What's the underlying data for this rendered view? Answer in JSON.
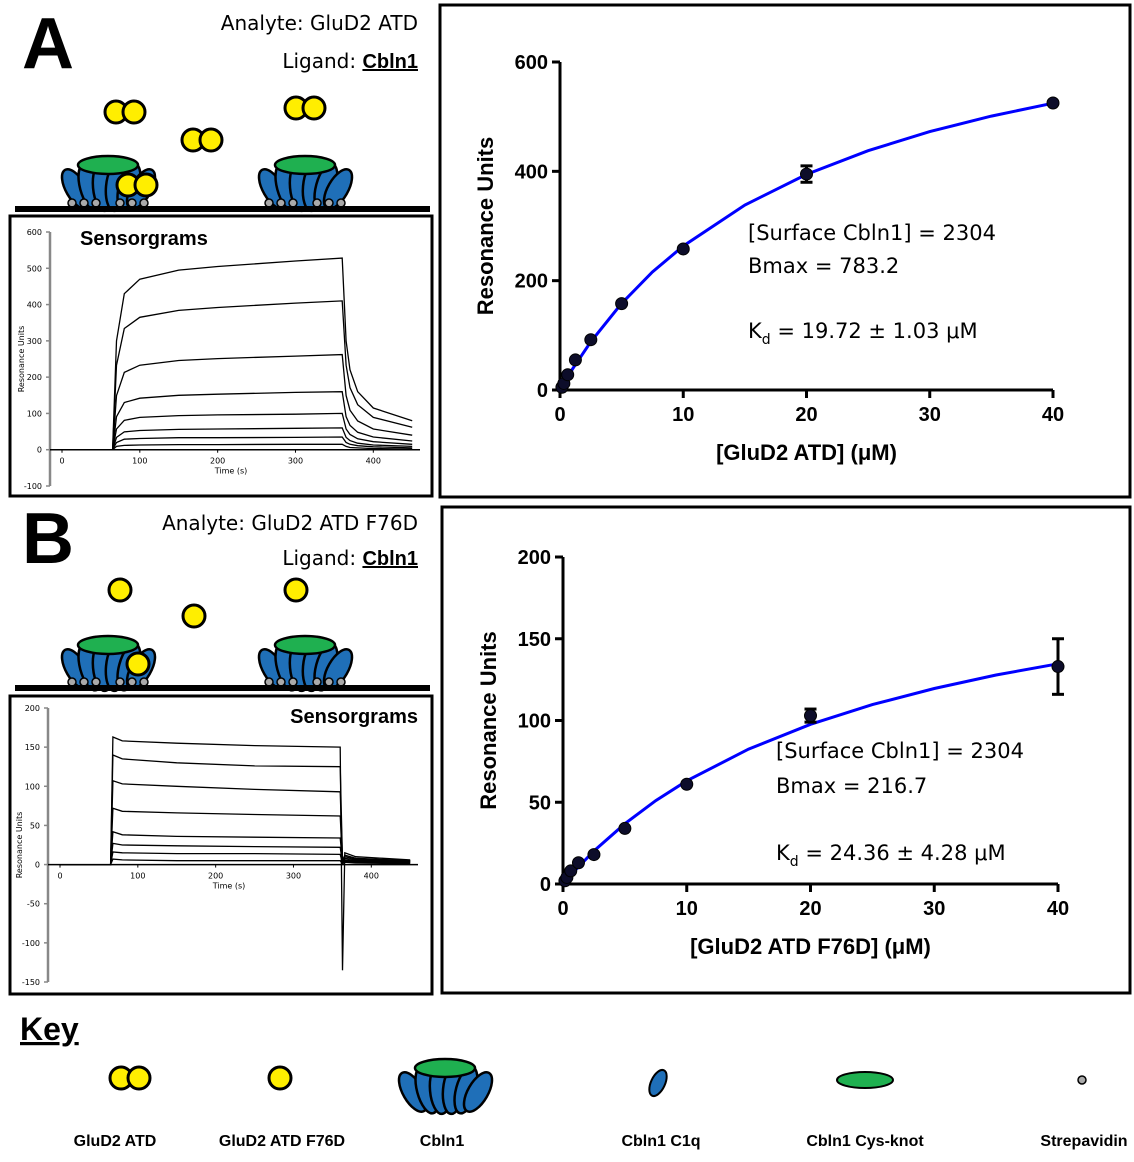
{
  "panels": [
    {
      "letter": "A",
      "analyte_label": "Analyte: GluD2 ATD",
      "ligand_label": "Ligand:",
      "ligand": "Cbln1"
    },
    {
      "letter": "B",
      "analyte_label": "Analyte: GluD2 ATD F76D",
      "ligand_label": "Ligand:",
      "ligand": "Cbln1"
    }
  ],
  "chart_data": [
    {
      "type": "line",
      "title": "Sensorgrams",
      "x_label": "Time (s)",
      "y_label": "Resonance Units",
      "color": "#000000",
      "xlim": [
        0,
        460
      ],
      "ylim": [
        -100,
        600
      ],
      "xticks": [
        0,
        100,
        200,
        300,
        400
      ],
      "yticks": [
        -100,
        0,
        100,
        200,
        300,
        400,
        500,
        600
      ],
      "x": [
        0,
        60,
        65,
        70,
        80,
        100,
        150,
        200,
        300,
        360,
        365,
        370,
        380,
        400,
        450
      ],
      "series": [
        {
          "values": [
            0,
            0,
            0,
            300,
            430,
            470,
            495,
            505,
            520,
            528,
            300,
            220,
            160,
            115,
            80
          ]
        },
        {
          "values": [
            0,
            0,
            0,
            233,
            334,
            365,
            384,
            392,
            404,
            410,
            233,
            171,
            124,
            89,
            62
          ]
        },
        {
          "values": [
            0,
            0,
            0,
            149,
            213,
            233,
            246,
            251,
            258,
            262,
            149,
            109,
            79,
            57,
            40
          ]
        },
        {
          "values": [
            0,
            0,
            0,
            91,
            130,
            142,
            150,
            153,
            158,
            160,
            91,
            67,
            48,
            35,
            24
          ]
        },
        {
          "values": [
            0,
            0,
            0,
            57,
            81,
            89,
            94,
            96,
            98,
            100,
            57,
            42,
            30,
            22,
            15
          ]
        },
        {
          "values": [
            0,
            0,
            0,
            34,
            49,
            53,
            56,
            57,
            59,
            60,
            34,
            25,
            18,
            13,
            9
          ]
        },
        {
          "values": [
            0,
            0,
            0,
            20,
            29,
            31,
            33,
            33,
            34,
            35,
            20,
            15,
            11,
            8,
            5
          ]
        },
        {
          "values": [
            0,
            0,
            0,
            9,
            12,
            13,
            14,
            14,
            15,
            15,
            9,
            6,
            5,
            3,
            2
          ]
        }
      ]
    },
    {
      "type": "scatter",
      "x_label": "[GluD2 ATD] (μM)",
      "y_label": "Resonance Units",
      "color": "#0d0d2a",
      "xlim": [
        0,
        40
      ],
      "ylim": [
        0,
        600
      ],
      "xticks": [
        0,
        10,
        20,
        30,
        40
      ],
      "yticks": [
        0,
        200,
        400,
        600
      ],
      "x": [
        0.156,
        0.3125,
        0.625,
        1.25,
        2.5,
        5,
        10,
        20,
        40
      ],
      "values": [
        5,
        12,
        28,
        55,
        92,
        158,
        258,
        395,
        525
      ],
      "errors": [
        null,
        null,
        null,
        null,
        null,
        null,
        null,
        15,
        null
      ],
      "fit": {
        "color": "#0000ff",
        "x": [
          0,
          1,
          2.5,
          5,
          7.5,
          10,
          15,
          20,
          25,
          30,
          35,
          40
        ],
        "values": [
          0,
          37.8,
          88.1,
          158.4,
          215.8,
          263.5,
          338.4,
          394.4,
          437.8,
          472.6,
          501.0,
          524.6
        ]
      },
      "annotations": [
        "[Surface Cbln1] = 2304",
        "Bmax = 783.2"
      ],
      "kd": {
        "symbol": "K",
        "subscript": "d",
        "text": " = 19.72 ± 1.03 μM"
      }
    },
    {
      "type": "line",
      "title": "Sensorgrams",
      "x_label": "Time (s)",
      "y_label": "Resonance Units",
      "color": "#000000",
      "xlim": [
        0,
        460
      ],
      "ylim": [
        -150,
        200
      ],
      "xticks": [
        0,
        100,
        200,
        300,
        400
      ],
      "yticks": [
        -150,
        -100,
        -50,
        0,
        50,
        100,
        150,
        200
      ],
      "x": [
        0,
        60,
        65,
        68,
        80,
        150,
        250,
        360,
        363,
        366,
        380,
        450
      ],
      "series": [
        {
          "values": [
            0,
            0,
            0,
            163,
            158,
            155,
            152,
            150,
            -135,
            15,
            10,
            6
          ]
        },
        {
          "values": [
            0,
            0,
            0,
            140,
            135,
            130,
            126,
            125,
            5,
            12,
            8,
            5
          ]
        },
        {
          "values": [
            0,
            0,
            0,
            107,
            103,
            100,
            96,
            93,
            5,
            10,
            7,
            5
          ]
        },
        {
          "values": [
            0,
            0,
            0,
            72,
            68,
            66,
            64,
            62,
            4,
            8,
            6,
            4
          ]
        },
        {
          "values": [
            0,
            0,
            0,
            42,
            38,
            36,
            35,
            34,
            3,
            6,
            5,
            3
          ]
        },
        {
          "values": [
            0,
            0,
            0,
            27,
            25,
            24,
            23,
            22,
            2,
            5,
            4,
            3
          ]
        },
        {
          "values": [
            0,
            0,
            0,
            16,
            15,
            14,
            14,
            13,
            2,
            4,
            3,
            2
          ]
        },
        {
          "values": [
            0,
            0,
            0,
            7,
            6,
            5,
            5,
            5,
            1,
            3,
            2,
            1
          ]
        }
      ]
    },
    {
      "type": "scatter",
      "x_label": "[GluD2 ATD F76D] (μM)",
      "y_label": "Resonance Units",
      "color": "#0d0d2a",
      "xlim": [
        0,
        40
      ],
      "ylim": [
        0,
        200
      ],
      "xticks": [
        0,
        10,
        20,
        30,
        40
      ],
      "yticks": [
        0,
        50,
        100,
        150,
        200
      ],
      "x": [
        0.156,
        0.3125,
        0.625,
        1.25,
        2.5,
        5,
        10,
        20,
        40
      ],
      "values": [
        2,
        4,
        8,
        13,
        18,
        34,
        61,
        103,
        133
      ],
      "errors": [
        null,
        null,
        null,
        null,
        null,
        null,
        null,
        4,
        17
      ],
      "fit": {
        "color": "#0000ff",
        "x": [
          0,
          1,
          2.5,
          5,
          7.5,
          10,
          15,
          20,
          25,
          30,
          35,
          40
        ],
        "values": [
          0,
          8.5,
          20.2,
          36.9,
          51.0,
          63.1,
          82.5,
          97.7,
          109.7,
          119.6,
          127.8,
          134.7
        ]
      },
      "annotations": [
        "[Surface Cbln1] = 2304",
        "Bmax = 216.7"
      ],
      "kd": {
        "symbol": "K",
        "subscript": "d",
        "text": " = 24.36 ± 4.28 μM"
      }
    }
  ],
  "key": {
    "title": "Key",
    "items": [
      "GluD2 ATD",
      "GluD2 ATD F76D",
      "Cbln1",
      "Cbln1 C1q",
      "Cbln1 Cys-knot",
      "Strepavidin"
    ]
  }
}
